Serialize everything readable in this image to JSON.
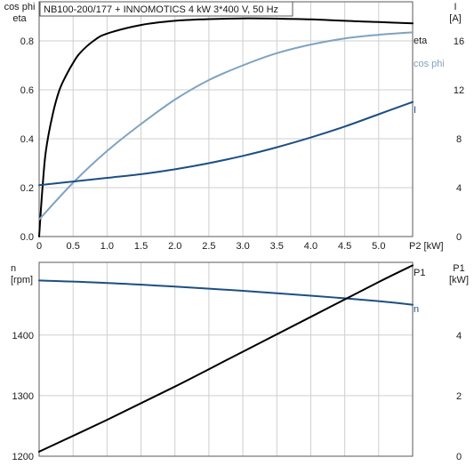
{
  "title": "NB100-200/177 + INNOMOTICS   4 kW   3*400 V, 50 Hz",
  "colors": {
    "eta": "#000000",
    "cos_phi": "#7ea3c2",
    "I": "#1c4f84",
    "n": "#1c4f84",
    "P1": "#000000",
    "grid": "#cfcfcf",
    "frame": "#5a5a5a"
  },
  "chart_data": [
    {
      "type": "line",
      "x_ticks": [
        "0",
        "0.5",
        "1.0",
        "1.5",
        "2.0",
        "2.5",
        "3.0",
        "3.5",
        "4.0",
        "4.5",
        "5.0"
      ],
      "x_unit_label": "P2 [kW]",
      "xlim": [
        0,
        5.5
      ],
      "y_left_label": [
        "cos phi",
        "eta"
      ],
      "y_left_ticks": [
        "0.0",
        "0.2",
        "0.4",
        "0.6",
        "0.8"
      ],
      "ylim_left": [
        0,
        0.96
      ],
      "y_right_label": [
        "I",
        "[A]"
      ],
      "y_right_ticks": [
        "0",
        "4",
        "8",
        "12",
        "16"
      ],
      "ylim_right": [
        0,
        19.2
      ],
      "grid": true,
      "series": [
        {
          "name": "eta",
          "axis": "left",
          "points": [
            [
              0,
              0
            ],
            [
              0.05,
              0.2
            ],
            [
              0.1,
              0.35
            ],
            [
              0.2,
              0.5
            ],
            [
              0.3,
              0.6
            ],
            [
              0.4,
              0.66
            ],
            [
              0.5,
              0.71
            ],
            [
              0.6,
              0.75
            ],
            [
              0.8,
              0.8
            ],
            [
              1.0,
              0.83
            ],
            [
              1.5,
              0.865
            ],
            [
              2.0,
              0.882
            ],
            [
              2.5,
              0.889
            ],
            [
              3.0,
              0.892
            ],
            [
              3.5,
              0.891
            ],
            [
              4.0,
              0.888
            ],
            [
              4.5,
              0.882
            ],
            [
              5.0,
              0.877
            ],
            [
              5.5,
              0.872
            ]
          ]
        },
        {
          "name": "cos phi",
          "axis": "left",
          "points": [
            [
              0,
              0.07
            ],
            [
              0.5,
              0.22
            ],
            [
              1.0,
              0.35
            ],
            [
              1.5,
              0.46
            ],
            [
              2.0,
              0.56
            ],
            [
              2.5,
              0.64
            ],
            [
              3.0,
              0.7
            ],
            [
              3.5,
              0.75
            ],
            [
              4.0,
              0.785
            ],
            [
              4.5,
              0.81
            ],
            [
              5.0,
              0.825
            ],
            [
              5.5,
              0.835
            ]
          ]
        },
        {
          "name": "I",
          "axis": "right",
          "points": [
            [
              0,
              4.2
            ],
            [
              0.5,
              4.5
            ],
            [
              1.0,
              4.8
            ],
            [
              1.5,
              5.1
            ],
            [
              2.0,
              5.5
            ],
            [
              2.5,
              6.0
            ],
            [
              3.0,
              6.6
            ],
            [
              3.5,
              7.3
            ],
            [
              4.0,
              8.1
            ],
            [
              4.5,
              9.0
            ],
            [
              5.0,
              10.0
            ],
            [
              5.5,
              11.0
            ]
          ]
        }
      ]
    },
    {
      "type": "line",
      "x_unit_label": "",
      "xlim": [
        0,
        5.5
      ],
      "y_left_label": [
        "n",
        "[rpm]"
      ],
      "y_left_ticks": [
        "1200",
        "1300",
        "1400"
      ],
      "ylim_left": [
        1200,
        1520
      ],
      "y_right_label": [
        "P1",
        "[kW]"
      ],
      "y_right_ticks": [
        "0",
        "2",
        "4"
      ],
      "ylim_right": [
        0,
        6.4
      ],
      "grid": true,
      "series": [
        {
          "name": "n",
          "axis": "left",
          "points": [
            [
              0,
              1490
            ],
            [
              1.0,
              1486
            ],
            [
              2.0,
              1480
            ],
            [
              3.0,
              1473
            ],
            [
              4.0,
              1465
            ],
            [
              5.0,
              1456
            ],
            [
              5.5,
              1450
            ]
          ]
        },
        {
          "name": "P1",
          "axis": "right",
          "points": [
            [
              0,
              0.15
            ],
            [
              1.0,
              1.2
            ],
            [
              2.0,
              2.3
            ],
            [
              3.0,
              3.45
            ],
            [
              4.0,
              4.6
            ],
            [
              5.0,
              5.75
            ],
            [
              5.5,
              6.3
            ]
          ]
        }
      ]
    }
  ]
}
